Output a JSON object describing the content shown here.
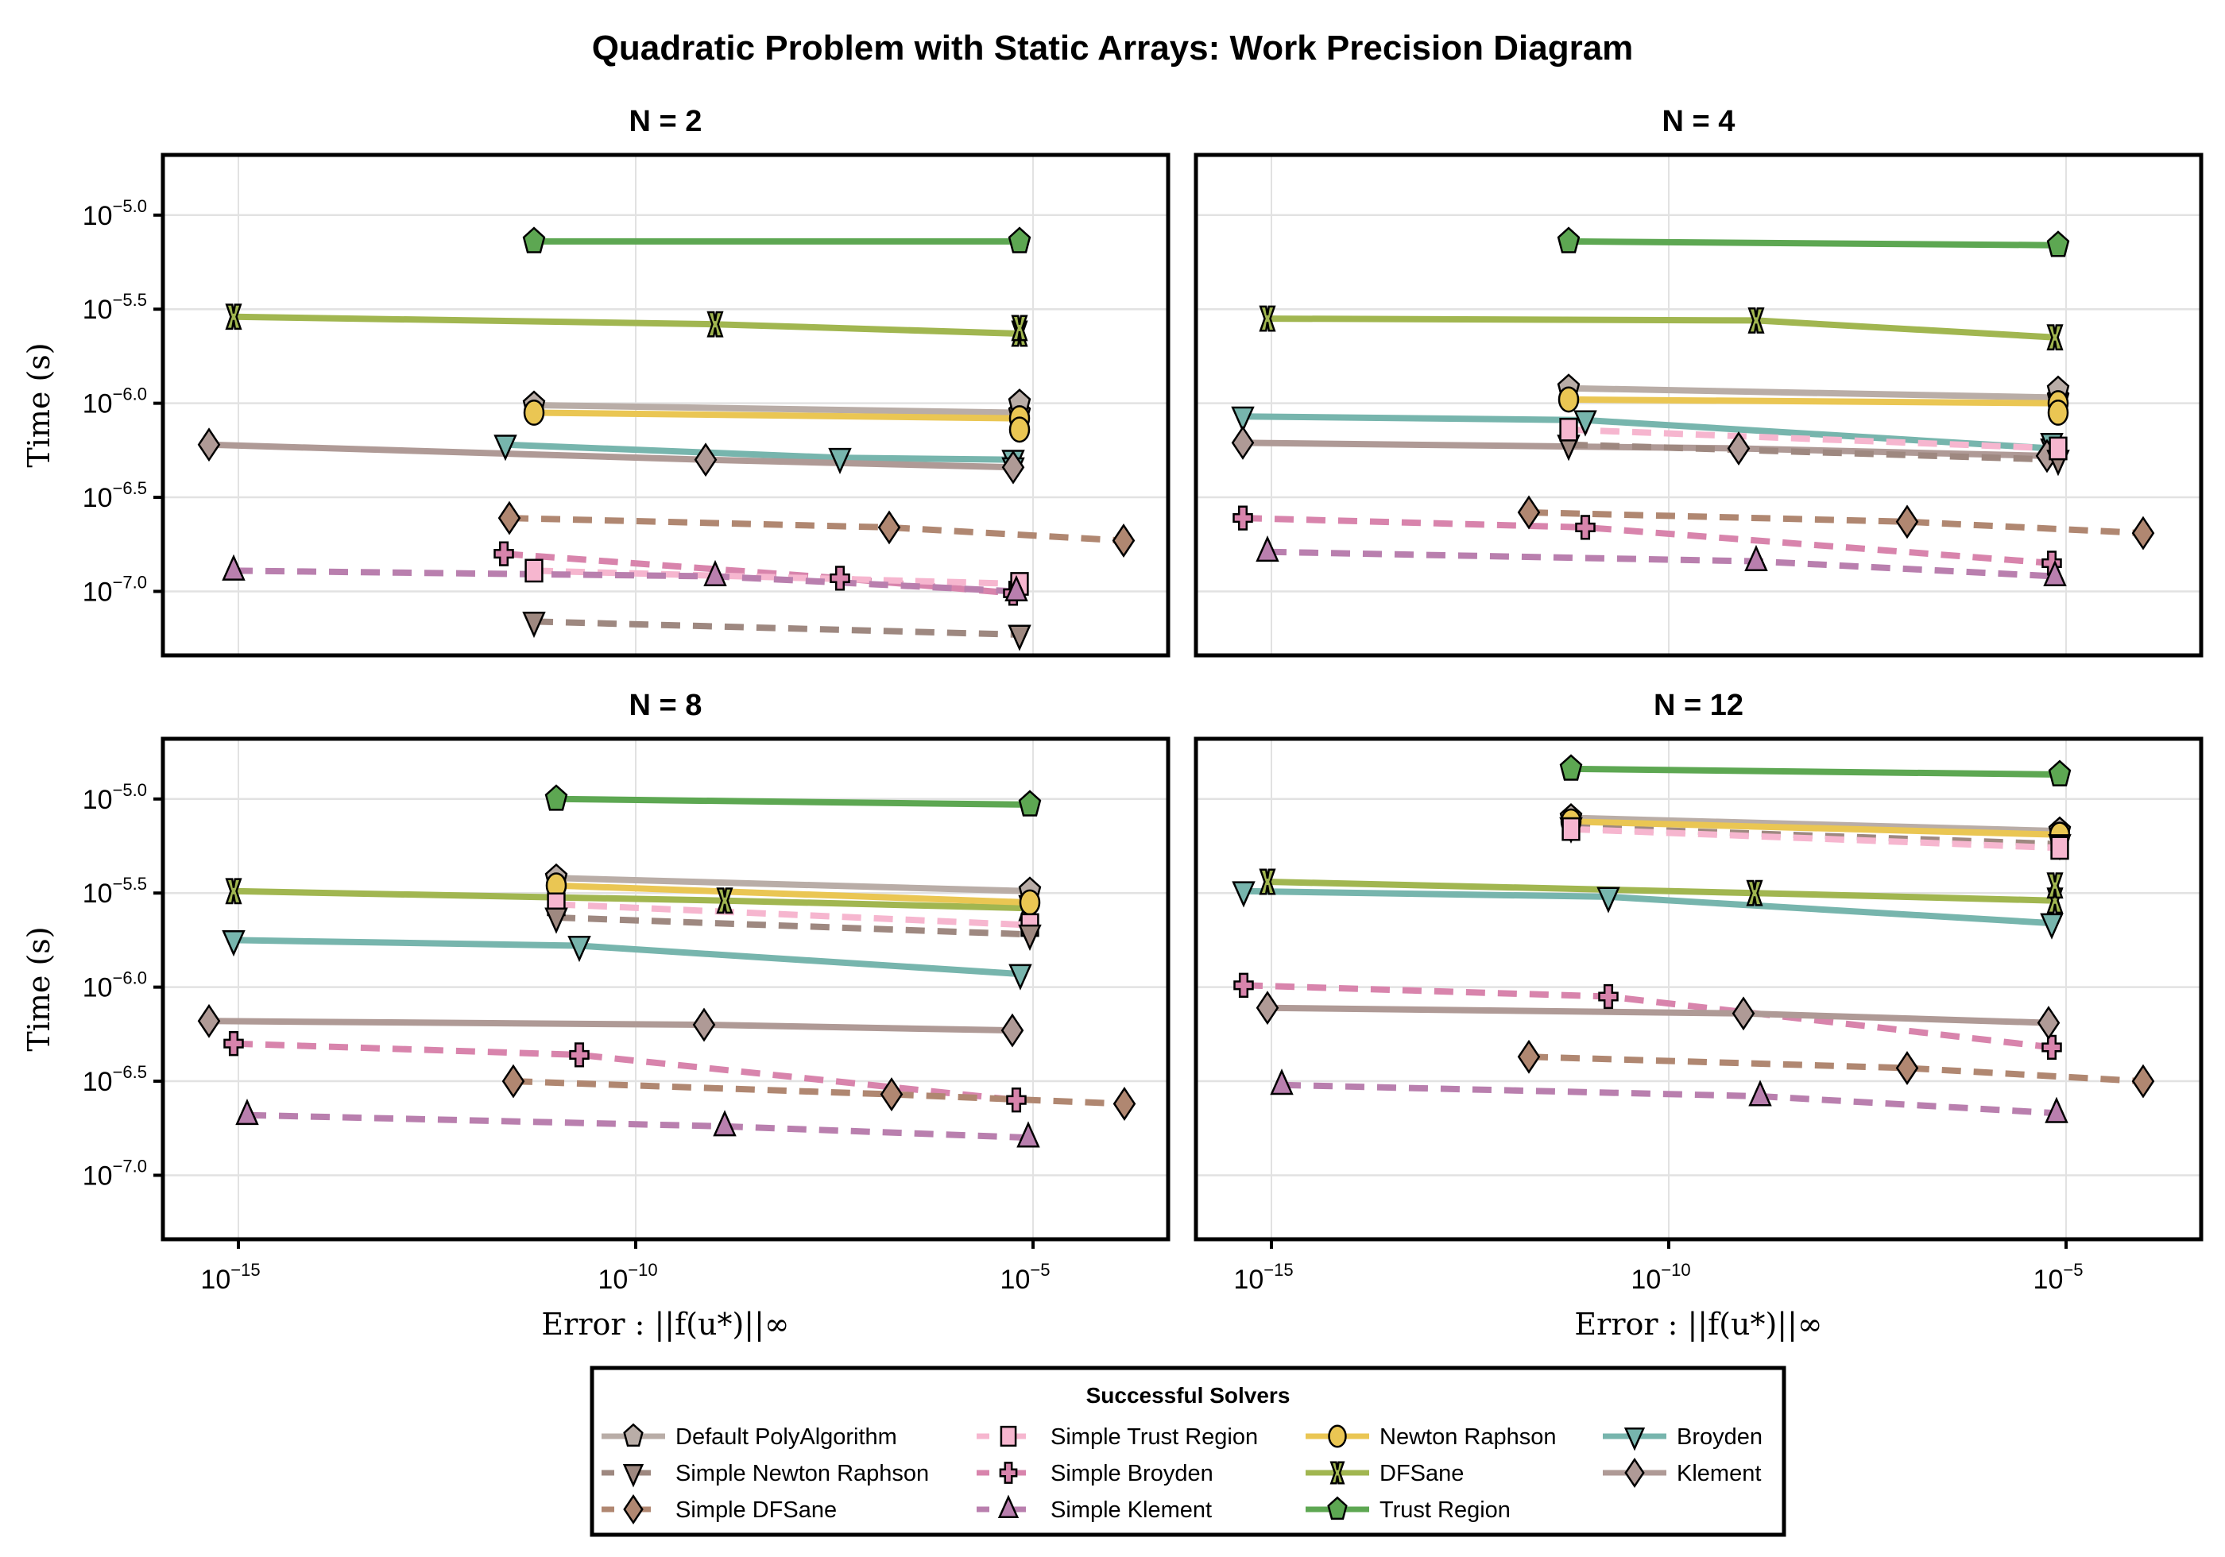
{
  "chart_data": {
    "type": "line",
    "title": "Quadratic Problem with Static Arrays: Work Precision Diagram",
    "xlabel": "Error : ||f(u*)||∞",
    "ylabel": "Time (s)",
    "xscale": "log10",
    "yscale": "log10",
    "xlim_log10": [
      -15.95,
      -3.3
    ],
    "ylim_log10": [
      -7.34,
      -4.68
    ],
    "x_ticks": [
      {
        "log": -15,
        "label": "10",
        "exp": "−15"
      },
      {
        "log": -10,
        "label": "10",
        "exp": "−10"
      },
      {
        "log": -5,
        "label": "10",
        "exp": "−5"
      }
    ],
    "y_ticks": [
      {
        "log": -5.0,
        "label": "10",
        "exp": "−5.0"
      },
      {
        "log": -5.5,
        "label": "10",
        "exp": "−5.5"
      },
      {
        "log": -6.0,
        "label": "10",
        "exp": "−6.0"
      },
      {
        "log": -6.5,
        "label": "10",
        "exp": "−6.5"
      },
      {
        "log": -7.0,
        "label": "10",
        "exp": "−7.0"
      }
    ],
    "grid": true,
    "legend": {
      "title": "Successful Solvers",
      "placement": "bottom-center",
      "columns": 4
    },
    "series_styles": [
      {
        "name": "Default PolyAlgorithm",
        "color": "#b9ada7",
        "dashed": false,
        "marker": "pentagon"
      },
      {
        "name": "Simple Newton Raphson",
        "color": "#9e8880",
        "dashed": true,
        "marker": "triangle-down"
      },
      {
        "name": "Simple DFSane",
        "color": "#b08771",
        "dashed": true,
        "marker": "diamond"
      },
      {
        "name": "Simple Trust Region",
        "color": "#f6b6cf",
        "dashed": true,
        "marker": "square"
      },
      {
        "name": "Simple Broyden",
        "color": "#d884ac",
        "dashed": true,
        "marker": "cross"
      },
      {
        "name": "Simple Klement",
        "color": "#b97fae",
        "dashed": true,
        "marker": "triangle-up"
      },
      {
        "name": "Newton Raphson",
        "color": "#eac653",
        "dashed": false,
        "marker": "circle"
      },
      {
        "name": "DFSane",
        "color": "#a1b650",
        "dashed": false,
        "marker": "x"
      },
      {
        "name": "Trust Region",
        "color": "#5da752",
        "dashed": false,
        "marker": "pentagon"
      },
      {
        "name": "Broyden",
        "color": "#77b5ad",
        "dashed": false,
        "marker": "triangle-down"
      },
      {
        "name": "Klement",
        "color": "#af9a96",
        "dashed": false,
        "marker": "diamond"
      }
    ],
    "panels": [
      {
        "title": "N = 2",
        "series": [
          {
            "name": "Trust Region",
            "points": [
              [
                -11.28,
                -5.14
              ],
              [
                -5.17,
                -5.14
              ]
            ]
          },
          {
            "name": "DFSane",
            "points": [
              [
                -15.06,
                -5.54
              ],
              [
                -9.0,
                -5.58
              ],
              [
                -5.17,
                -5.63
              ]
            ],
            "extra_markers": [
              [
                -5.17,
                -5.6
              ]
            ]
          },
          {
            "name": "Default PolyAlgorithm",
            "points": [
              [
                -11.28,
                -6.01
              ],
              [
                -5.17,
                -6.05
              ]
            ],
            "extra_markers": [
              [
                -5.17,
                -6.0
              ]
            ]
          },
          {
            "name": "Newton Raphson",
            "points": [
              [
                -11.28,
                -6.05
              ],
              [
                -5.17,
                -6.08
              ]
            ],
            "extra_markers": [
              [
                -5.17,
                -6.14
              ]
            ]
          },
          {
            "name": "Broyden",
            "points": [
              [
                -11.64,
                -6.22
              ],
              [
                -7.43,
                -6.29
              ],
              [
                -5.25,
                -6.3
              ]
            ],
            "extra_markers": [
              [
                -5.25,
                -6.34
              ]
            ]
          },
          {
            "name": "Klement",
            "points": [
              [
                -15.37,
                -6.22
              ],
              [
                -9.12,
                -6.3
              ],
              [
                -5.25,
                -6.34
              ]
            ]
          },
          {
            "name": "Simple DFSane",
            "points": [
              [
                -11.59,
                -6.61
              ],
              [
                -6.81,
                -6.66
              ],
              [
                -3.86,
                -6.73
              ]
            ]
          },
          {
            "name": "Simple Broyden",
            "points": [
              [
                -11.66,
                -6.8
              ],
              [
                -7.43,
                -6.93
              ],
              [
                -5.25,
                -7.01
              ]
            ]
          },
          {
            "name": "Simple Trust Region",
            "points": [
              [
                -11.28,
                -6.89
              ],
              [
                -5.17,
                -6.96
              ]
            ]
          },
          {
            "name": "Simple Klement",
            "points": [
              [
                -15.06,
                -6.89
              ],
              [
                -9.0,
                -6.92
              ],
              [
                -5.21,
                -7.0
              ]
            ]
          },
          {
            "name": "Simple Newton Raphson",
            "points": [
              [
                -11.28,
                -7.16
              ],
              [
                -5.17,
                -7.23
              ]
            ]
          }
        ]
      },
      {
        "title": "N = 4",
        "series": [
          {
            "name": "Trust Region",
            "points": [
              [
                -11.26,
                -5.14
              ],
              [
                -5.1,
                -5.16
              ]
            ]
          },
          {
            "name": "DFSane",
            "points": [
              [
                -15.05,
                -5.55
              ],
              [
                -8.9,
                -5.56
              ],
              [
                -5.14,
                -5.65
              ]
            ]
          },
          {
            "name": "Default PolyAlgorithm",
            "points": [
              [
                -11.26,
                -5.92
              ],
              [
                -5.1,
                -5.97
              ]
            ],
            "extra_markers": [
              [
                -5.1,
                -5.93
              ]
            ]
          },
          {
            "name": "Newton Raphson",
            "points": [
              [
                -11.26,
                -5.98
              ],
              [
                -5.1,
                -6.0
              ]
            ],
            "extra_markers": [
              [
                -5.1,
                -6.05
              ]
            ]
          },
          {
            "name": "Broyden",
            "points": [
              [
                -15.36,
                -6.07
              ],
              [
                -11.05,
                -6.09
              ],
              [
                -5.18,
                -6.24
              ]
            ],
            "extra_markers": [
              [
                -5.18,
                -6.21
              ]
            ]
          },
          {
            "name": "Klement",
            "points": [
              [
                -15.36,
                -6.21
              ],
              [
                -9.12,
                -6.24
              ],
              [
                -5.24,
                -6.28
              ]
            ]
          },
          {
            "name": "Simple Newton Raphson",
            "points": [
              [
                -11.26,
                -6.22
              ],
              [
                -5.1,
                -6.3
              ]
            ]
          },
          {
            "name": "Simple Trust Region",
            "points": [
              [
                -11.26,
                -6.14
              ],
              [
                -5.1,
                -6.24
              ]
            ]
          },
          {
            "name": "Simple DFSane",
            "points": [
              [
                -11.76,
                -6.58
              ],
              [
                -7.0,
                -6.63
              ],
              [
                -4.03,
                -6.69
              ]
            ]
          },
          {
            "name": "Simple Broyden",
            "points": [
              [
                -15.36,
                -6.61
              ],
              [
                -11.05,
                -6.66
              ],
              [
                -5.18,
                -6.85
              ]
            ]
          },
          {
            "name": "Simple Klement",
            "points": [
              [
                -15.05,
                -6.79
              ],
              [
                -8.9,
                -6.84
              ],
              [
                -5.14,
                -6.92
              ]
            ]
          }
        ]
      },
      {
        "title": "N = 8",
        "series": [
          {
            "name": "Trust Region",
            "points": [
              [
                -11.0,
                -5.0
              ],
              [
                -5.04,
                -5.03
              ]
            ]
          },
          {
            "name": "DFSane",
            "points": [
              [
                -15.06,
                -5.49
              ],
              [
                -8.88,
                -5.54
              ],
              [
                -5.08,
                -5.58
              ]
            ]
          },
          {
            "name": "Default PolyAlgorithm",
            "points": [
              [
                -11.0,
                -5.42
              ],
              [
                -5.04,
                -5.49
              ]
            ]
          },
          {
            "name": "Newton Raphson",
            "points": [
              [
                -11.0,
                -5.46
              ],
              [
                -5.04,
                -5.55
              ]
            ]
          },
          {
            "name": "Simple Trust Region",
            "points": [
              [
                -11.0,
                -5.56
              ],
              [
                -5.04,
                -5.67
              ]
            ]
          },
          {
            "name": "Simple Newton Raphson",
            "points": [
              [
                -11.0,
                -5.63
              ],
              [
                -5.04,
                -5.72
              ]
            ]
          },
          {
            "name": "Broyden",
            "points": [
              [
                -15.06,
                -5.75
              ],
              [
                -10.71,
                -5.78
              ],
              [
                -5.16,
                -5.93
              ]
            ]
          },
          {
            "name": "Klement",
            "points": [
              [
                -15.37,
                -6.18
              ],
              [
                -9.14,
                -6.2
              ],
              [
                -5.26,
                -6.23
              ]
            ]
          },
          {
            "name": "Simple Broyden",
            "points": [
              [
                -15.06,
                -6.3
              ],
              [
                -10.71,
                -6.36
              ],
              [
                -5.21,
                -6.6
              ]
            ]
          },
          {
            "name": "Simple DFSane",
            "points": [
              [
                -11.54,
                -6.5
              ],
              [
                -6.78,
                -6.57
              ],
              [
                -3.85,
                -6.62
              ]
            ]
          },
          {
            "name": "Simple Klement",
            "points": [
              [
                -14.89,
                -6.68
              ],
              [
                -8.88,
                -6.74
              ],
              [
                -5.06,
                -6.8
              ]
            ]
          }
        ]
      },
      {
        "title": "N = 12",
        "series": [
          {
            "name": "Trust Region",
            "points": [
              [
                -11.23,
                -4.84
              ],
              [
                -5.08,
                -4.87
              ]
            ]
          },
          {
            "name": "Default PolyAlgorithm",
            "points": [
              [
                -11.23,
                -5.1
              ],
              [
                -5.08,
                -5.17
              ]
            ]
          },
          {
            "name": "Newton Raphson",
            "points": [
              [
                -11.23,
                -5.12
              ],
              [
                -5.08,
                -5.19
              ]
            ]
          },
          {
            "name": "Simple Newton Raphson",
            "points": [
              [
                -11.23,
                -5.15
              ],
              [
                -5.08,
                -5.24
              ]
            ]
          },
          {
            "name": "Simple Trust Region",
            "points": [
              [
                -11.23,
                -5.16
              ],
              [
                -5.08,
                -5.26
              ]
            ]
          },
          {
            "name": "DFSane",
            "points": [
              [
                -15.05,
                -5.44
              ],
              [
                -8.92,
                -5.5
              ],
              [
                -5.14,
                -5.54
              ]
            ],
            "extra_markers": [
              [
                -5.14,
                -5.46
              ]
            ]
          },
          {
            "name": "Broyden",
            "points": [
              [
                -15.35,
                -5.49
              ],
              [
                -10.76,
                -5.52
              ],
              [
                -5.18,
                -5.66
              ]
            ]
          },
          {
            "name": "Simple Broyden",
            "points": [
              [
                -15.35,
                -5.99
              ],
              [
                -10.76,
                -6.05
              ],
              [
                -5.18,
                -6.32
              ]
            ]
          },
          {
            "name": "Klement",
            "points": [
              [
                -15.05,
                -6.11
              ],
              [
                -9.06,
                -6.14
              ],
              [
                -5.22,
                -6.19
              ]
            ]
          },
          {
            "name": "Simple DFSane",
            "points": [
              [
                -11.76,
                -6.37
              ],
              [
                -7.0,
                -6.43
              ],
              [
                -4.03,
                -6.5
              ]
            ]
          },
          {
            "name": "Simple Klement",
            "points": [
              [
                -14.87,
                -6.52
              ],
              [
                -8.85,
                -6.58
              ],
              [
                -5.12,
                -6.67
              ]
            ]
          }
        ]
      }
    ]
  }
}
